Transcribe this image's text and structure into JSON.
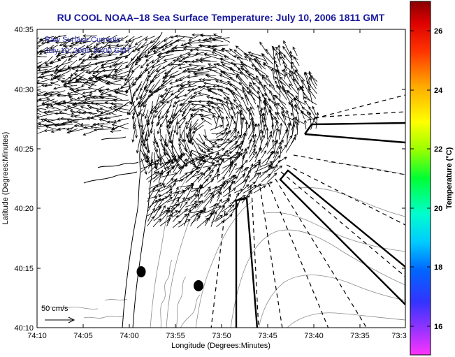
{
  "title": "RU COOL  NOAA–18  Sea Surface Temperature:  July 10, 2006 1811 GMT",
  "overlay": {
    "line1": "Raw Surface Currents",
    "line2": "July 10, 2006 18:00 GMT"
  },
  "scale_label": "50 cm/s",
  "map": {
    "xlabel": "Longitude (Degrees:Minutes)",
    "ylabel": "Latitude (Degrees:Minutes)",
    "x_ticks": [
      "74:10",
      "74:05",
      "74:00",
      "73:55",
      "73:50",
      "73:45",
      "73:40",
      "73:35",
      "73:3"
    ],
    "y_ticks": [
      "40:35",
      "40:30",
      "40:25",
      "40:20",
      "40:15",
      "40:10"
    ]
  },
  "colorbar": {
    "label": "Temperature (°C)",
    "ticks": [
      "26",
      "24",
      "22",
      "20",
      "18",
      "16"
    ],
    "range": [
      15.2,
      27.4
    ],
    "colors": [
      "#ff33ff",
      "#8a2be2",
      "#0000ff",
      "#00bfff",
      "#00ffd0",
      "#00ff00",
      "#c8ff00",
      "#ffff00",
      "#ff9900",
      "#ff3300",
      "#cc0000",
      "#880000"
    ]
  },
  "markers": [
    {
      "name": "buoy-1"
    },
    {
      "name": "buoy-2"
    }
  ]
}
